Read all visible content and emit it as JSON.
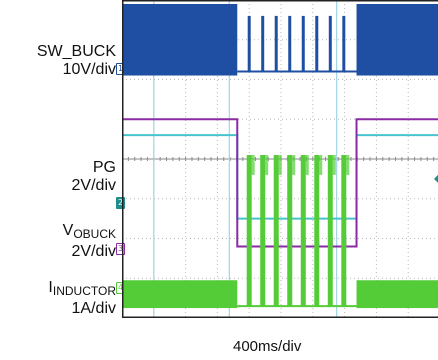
{
  "colors": {
    "sw_buck": "#1f4fa3",
    "pg": "#49c2cf",
    "vobuck": "#8a2aa5",
    "inductor": "#54cc37",
    "frame": "#222222",
    "grid": "#b9b9b9"
  },
  "channels": [
    {
      "id": "sw-buck",
      "name": "SW_BUCK",
      "name_sub": "",
      "scale": "10V/div",
      "marker": "1"
    },
    {
      "id": "pg",
      "name": "PG",
      "name_sub": "",
      "scale": "2V/div",
      "marker": "2"
    },
    {
      "id": "vobuck",
      "name": "V",
      "name_sub": "OBUCK",
      "scale": "2V/div",
      "marker": "3"
    },
    {
      "id": "inductor",
      "name": "I",
      "name_sub": "INDUCTOR",
      "scale": "1A/div",
      "marker": "4"
    }
  ],
  "timebase": "400ms/div",
  "chart_data": {
    "type": "line",
    "title": "",
    "xlabel": "400ms/div",
    "ylabel": "",
    "grid": true,
    "divisions": {
      "x": 10,
      "y": 8
    },
    "x_range_ms": [
      0,
      4000
    ],
    "series": [
      {
        "name": "SW_BUCK",
        "scale": "10V/div",
        "description_values": "switching bursts",
        "switching_until_ms": 1450,
        "switching_after_ms": 2950,
        "pulse_times_ms": [
          1600,
          1770,
          1940,
          2110,
          2280,
          2450,
          2620,
          2790
        ]
      },
      {
        "name": "PG",
        "scale": "2V/div",
        "levels_div": {
          "high": 4.6,
          "low": 2.5
        },
        "low_from_ms": 1450,
        "low_until_ms": 2950
      },
      {
        "name": "VOBUCK",
        "scale": "2V/div",
        "levels_div": {
          "high": 5.0,
          "low": 1.8
        },
        "low_from_ms": 1450,
        "low_until_ms": 2950,
        "spike_times_ms": [
          1600,
          1770,
          1940,
          2110,
          2280,
          2450,
          2620,
          2790
        ]
      },
      {
        "name": "INDUCTOR",
        "scale": "1A/div",
        "levels_div": {
          "ripple_center": 0.6,
          "low": 0.3
        },
        "low_from_ms": 1450,
        "low_until_ms": 2950,
        "spike_times_ms": [
          1600,
          1770,
          1940,
          2110,
          2280,
          2450,
          2620,
          2790
        ]
      }
    ],
    "cursors_ms": [
      400,
      1350,
      2700
    ]
  }
}
